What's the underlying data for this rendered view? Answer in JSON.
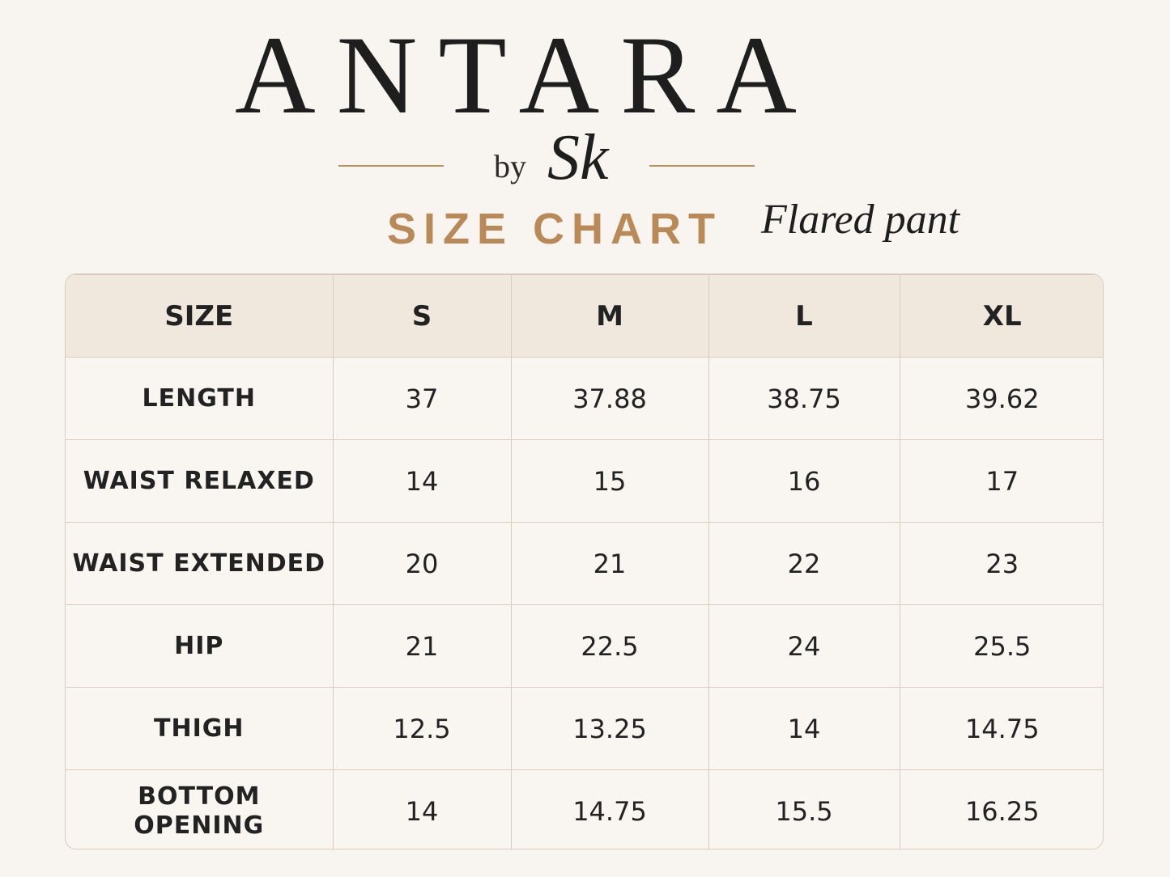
{
  "header": {
    "brand": "ANTARA",
    "by": "by",
    "signature": "Sk",
    "title": "SIZE CHART",
    "subtitle": "Flared pant"
  },
  "table": {
    "columns": [
      "SIZE",
      "S",
      "M",
      "L",
      "XL"
    ],
    "rows": [
      [
        "LENGTH",
        37,
        37.88,
        38.75,
        39.62
      ],
      [
        "WAIST RELAXED",
        14,
        15,
        16,
        17
      ],
      [
        "WAIST EXTENDED",
        20,
        21,
        22,
        23
      ],
      [
        "HIP",
        21,
        22.5,
        24,
        25.5
      ],
      [
        "THIGH",
        12.5,
        13.25,
        14,
        14.75
      ],
      [
        "BOTTOM OPENING",
        14,
        14.75,
        15.5,
        16.25
      ]
    ]
  }
}
